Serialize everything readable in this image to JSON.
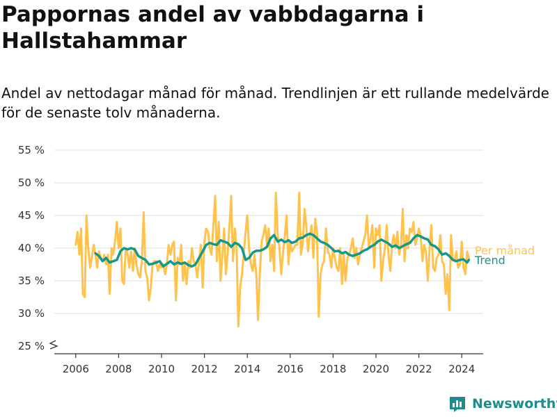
{
  "title": "Pappornas andel av vabbdagarna i Hallstahammar",
  "subtitle": "Andel av nettodagar månad för månad. Trendlinjen är ett rullande medelvärde för de senaste tolv månaderna.",
  "brand": "Newsworthy",
  "colors": {
    "per_month": "#ffc34d",
    "trend": "#15978a",
    "grid": "#dddddd",
    "brand": "#1e8c8c"
  },
  "chart_data": {
    "type": "line",
    "y_ticks": [
      "55 %",
      "50 %",
      "45 %",
      "40 %",
      "35 %",
      "30 %",
      "25 %"
    ],
    "x_ticks": [
      "2006",
      "2008",
      "2010",
      "2012",
      "2014",
      "2016",
      "2018",
      "2020",
      "2022",
      "2024"
    ],
    "ylim": [
      25,
      55
    ],
    "xlim": [
      2005.0,
      2025.0
    ],
    "axis_break": true,
    "grid": true,
    "series": [
      {
        "name": "Per månad",
        "color": "#ffc34d",
        "x": [
          2006.0,
          2006.08,
          2006.17,
          2006.25,
          2006.33,
          2006.42,
          2006.5,
          2006.58,
          2006.67,
          2006.75,
          2006.83,
          2006.92,
          2007.0,
          2007.08,
          2007.17,
          2007.25,
          2007.33,
          2007.42,
          2007.5,
          2007.58,
          2007.67,
          2007.75,
          2007.83,
          2007.92,
          2008.0,
          2008.08,
          2008.17,
          2008.25,
          2008.33,
          2008.42,
          2008.5,
          2008.58,
          2008.67,
          2008.75,
          2008.83,
          2008.92,
          2009.0,
          2009.08,
          2009.17,
          2009.25,
          2009.33,
          2009.42,
          2009.5,
          2009.58,
          2009.67,
          2009.75,
          2009.83,
          2009.92,
          2010.0,
          2010.08,
          2010.17,
          2010.25,
          2010.33,
          2010.42,
          2010.5,
          2010.58,
          2010.67,
          2010.75,
          2010.83,
          2010.92,
          2011.0,
          2011.08,
          2011.17,
          2011.25,
          2011.33,
          2011.42,
          2011.5,
          2011.58,
          2011.67,
          2011.75,
          2011.83,
          2011.92,
          2012.0,
          2012.08,
          2012.17,
          2012.25,
          2012.33,
          2012.42,
          2012.5,
          2012.58,
          2012.67,
          2012.75,
          2012.83,
          2012.92,
          2013.0,
          2013.08,
          2013.17,
          2013.25,
          2013.33,
          2013.42,
          2013.5,
          2013.58,
          2013.67,
          2013.75,
          2013.83,
          2013.92,
          2014.0,
          2014.08,
          2014.17,
          2014.25,
          2014.33,
          2014.42,
          2014.5,
          2014.58,
          2014.67,
          2014.75,
          2014.83,
          2014.92,
          2015.0,
          2015.08,
          2015.17,
          2015.25,
          2015.33,
          2015.42,
          2015.5,
          2015.58,
          2015.67,
          2015.75,
          2015.83,
          2015.92,
          2016.0,
          2016.08,
          2016.17,
          2016.25,
          2016.33,
          2016.42,
          2016.5,
          2016.58,
          2016.67,
          2016.75,
          2016.83,
          2016.92,
          2017.0,
          2017.08,
          2017.17,
          2017.25,
          2017.33,
          2017.42,
          2017.5,
          2017.58,
          2017.67,
          2017.75,
          2017.83,
          2017.92,
          2018.0,
          2018.08,
          2018.17,
          2018.25,
          2018.33,
          2018.42,
          2018.5,
          2018.58,
          2018.67,
          2018.75,
          2018.83,
          2018.92,
          2019.0,
          2019.08,
          2019.17,
          2019.25,
          2019.33,
          2019.42,
          2019.5,
          2019.58,
          2019.67,
          2019.75,
          2019.83,
          2019.92,
          2020.0,
          2020.08,
          2020.17,
          2020.25,
          2020.33,
          2020.42,
          2020.5,
          2020.58,
          2020.67,
          2020.75,
          2020.83,
          2020.92,
          2021.0,
          2021.08,
          2021.17,
          2021.25,
          2021.33,
          2021.42,
          2021.5,
          2021.58,
          2021.67,
          2021.75,
          2021.83,
          2021.92,
          2022.0,
          2022.08,
          2022.17,
          2022.25,
          2022.33,
          2022.42,
          2022.5,
          2022.58,
          2022.67,
          2022.75,
          2022.83,
          2022.92,
          2023.0,
          2023.08,
          2023.17,
          2023.25,
          2023.33,
          2023.42,
          2023.5,
          2023.58,
          2023.67,
          2023.75,
          2023.83,
          2023.92,
          2024.0,
          2024.08,
          2024.17,
          2024.25,
          2024.33
        ],
        "values": [
          40.5,
          42.5,
          39.0,
          43.0,
          33.0,
          32.5,
          45.0,
          40.0,
          37.0,
          38.5,
          40.5,
          39.0,
          37.0,
          39.5,
          38.5,
          38.0,
          39.0,
          37.5,
          39.0,
          33.0,
          40.0,
          39.0,
          41.0,
          44.0,
          40.0,
          43.0,
          35.0,
          34.5,
          40.0,
          39.0,
          37.0,
          39.5,
          36.5,
          40.0,
          37.5,
          36.0,
          35.5,
          38.0,
          45.5,
          36.5,
          35.5,
          32.0,
          34.0,
          37.5,
          38.0,
          38.0,
          36.5,
          37.5,
          37.0,
          37.5,
          36.0,
          37.5,
          40.5,
          39.0,
          40.5,
          41.0,
          32.0,
          38.5,
          37.5,
          40.5,
          35.0,
          37.5,
          34.5,
          38.0,
          37.0,
          40.0,
          38.0,
          37.5,
          35.5,
          38.0,
          40.5,
          34.0,
          41.0,
          43.0,
          42.5,
          40.0,
          39.0,
          43.5,
          48.0,
          38.0,
          44.0,
          35.0,
          38.5,
          43.0,
          36.0,
          39.0,
          43.5,
          48.0,
          38.0,
          43.0,
          40.0,
          28.0,
          34.0,
          36.0,
          39.0,
          42.5,
          45.0,
          40.0,
          37.5,
          36.5,
          39.0,
          36.0,
          29.0,
          36.0,
          41.0,
          42.0,
          43.5,
          40.5,
          43.0,
          38.0,
          40.5,
          36.5,
          48.5,
          42.0,
          40.0,
          36.0,
          39.5,
          42.0,
          45.0,
          37.5,
          41.0,
          39.5,
          40.0,
          40.5,
          40.5,
          48.5,
          39.0,
          40.5,
          46.0,
          43.5,
          39.5,
          42.0,
          43.5,
          38.5,
          44.5,
          42.5,
          29.5,
          36.0,
          37.5,
          38.0,
          43.0,
          39.5,
          39.0,
          37.0,
          40.0,
          38.5,
          37.0,
          36.5,
          40.0,
          34.5,
          39.0,
          35.0,
          38.5,
          39.0,
          40.0,
          41.5,
          38.5,
          40.0,
          37.5,
          39.0,
          40.0,
          41.0,
          42.0,
          45.0,
          40.0,
          41.5,
          43.5,
          37.0,
          43.0,
          42.0,
          43.5,
          35.0,
          38.0,
          40.0,
          43.5,
          39.0,
          36.5,
          40.5,
          42.0,
          40.0,
          42.5,
          39.0,
          40.5,
          46.0,
          38.0,
          42.0,
          40.0,
          43.0,
          42.5,
          44.0,
          40.5,
          41.5,
          43.0,
          42.0,
          38.0,
          40.5,
          39.5,
          35.0,
          40.0,
          43.5,
          37.0,
          36.5,
          38.5,
          39.0,
          42.0,
          38.0,
          37.5,
          33.0,
          36.0,
          30.5,
          42.0,
          38.5,
          38.0,
          39.5,
          37.0,
          37.5,
          41.0,
          37.0,
          36.0,
          39.5,
          38.5
        ]
      },
      {
        "name": "Trend",
        "color": "#15978a",
        "x": [
          2006.92,
          2007.08,
          2007.25,
          2007.42,
          2007.58,
          2007.75,
          2007.92,
          2008.08,
          2008.25,
          2008.42,
          2008.58,
          2008.75,
          2008.92,
          2009.08,
          2009.25,
          2009.42,
          2009.58,
          2009.75,
          2009.92,
          2010.08,
          2010.25,
          2010.42,
          2010.58,
          2010.75,
          2010.92,
          2011.08,
          2011.25,
          2011.42,
          2011.58,
          2011.75,
          2011.92,
          2012.08,
          2012.25,
          2012.42,
          2012.58,
          2012.75,
          2012.92,
          2013.08,
          2013.25,
          2013.42,
          2013.58,
          2013.75,
          2013.92,
          2014.08,
          2014.25,
          2014.42,
          2014.58,
          2014.75,
          2014.92,
          2015.08,
          2015.25,
          2015.42,
          2015.58,
          2015.75,
          2015.92,
          2016.08,
          2016.25,
          2016.42,
          2016.58,
          2016.75,
          2016.92,
          2017.08,
          2017.25,
          2017.42,
          2017.58,
          2017.75,
          2017.92,
          2018.08,
          2018.25,
          2018.42,
          2018.58,
          2018.75,
          2018.92,
          2019.08,
          2019.25,
          2019.42,
          2019.58,
          2019.75,
          2019.92,
          2020.08,
          2020.25,
          2020.42,
          2020.58,
          2020.75,
          2020.92,
          2021.08,
          2021.25,
          2021.42,
          2021.58,
          2021.75,
          2021.92,
          2022.08,
          2022.25,
          2022.42,
          2022.58,
          2022.75,
          2022.92,
          2023.08,
          2023.25,
          2023.42,
          2023.58,
          2023.75,
          2023.92,
          2024.08,
          2024.25,
          2024.33
        ],
        "values": [
          39.2,
          38.8,
          38.0,
          38.5,
          37.8,
          38.0,
          38.2,
          39.5,
          40.0,
          39.8,
          40.0,
          39.8,
          38.8,
          38.5,
          38.2,
          37.5,
          37.6,
          37.8,
          38.0,
          37.2,
          37.6,
          38.0,
          37.5,
          37.8,
          37.6,
          37.8,
          37.4,
          37.2,
          37.5,
          38.5,
          39.5,
          40.5,
          40.8,
          40.6,
          40.5,
          41.2,
          41.0,
          40.8,
          40.2,
          40.8,
          40.6,
          40.0,
          38.2,
          38.5,
          39.3,
          39.6,
          39.6,
          39.8,
          40.2,
          41.5,
          42.0,
          41.0,
          41.3,
          40.9,
          41.2,
          40.8,
          41.0,
          41.5,
          41.6,
          42.0,
          42.2,
          42.0,
          41.5,
          41.0,
          40.8,
          40.5,
          40.0,
          39.5,
          39.6,
          39.2,
          39.4,
          39.0,
          38.8,
          39.0,
          39.2,
          39.6,
          39.8,
          40.2,
          40.5,
          41.0,
          41.3,
          41.0,
          40.7,
          40.2,
          40.4,
          40.0,
          40.3,
          40.6,
          40.8,
          41.5,
          42.0,
          41.8,
          41.5,
          41.3,
          40.5,
          40.3,
          39.8,
          39.0,
          39.2,
          38.8,
          38.2,
          38.0,
          38.2,
          38.3,
          37.8,
          38.2
        ]
      }
    ]
  }
}
